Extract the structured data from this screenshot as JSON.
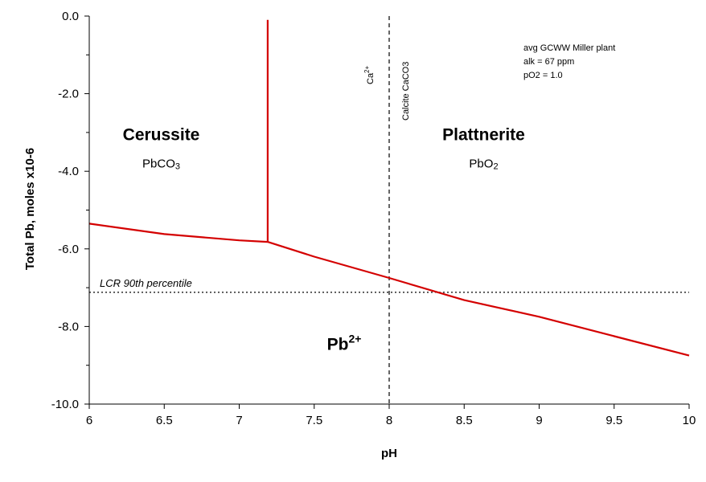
{
  "chart_data": {
    "type": "line",
    "xlabel": "pH",
    "ylabel": "Total Pb, moles x10-6",
    "xlim": [
      6,
      10
    ],
    "ylim": [
      -10.0,
      0.0
    ],
    "x_ticks": [
      "6",
      "6.5",
      "7",
      "7.5",
      "8",
      "8.5",
      "9",
      "9.5",
      "10"
    ],
    "y_ticks": [
      "0.0",
      "-2.0",
      "-4.0",
      "-6.0",
      "-8.0",
      "-10.0"
    ],
    "series": [
      {
        "points": [
          [
            6.0,
            -5.35
          ],
          [
            6.5,
            -5.62
          ],
          [
            7.0,
            -5.78
          ],
          [
            7.19,
            -5.82
          ],
          [
            7.5,
            -6.2
          ],
          [
            8.0,
            -6.75
          ],
          [
            8.5,
            -7.32
          ],
          [
            9.0,
            -7.75
          ],
          [
            9.5,
            -8.25
          ],
          [
            10.0,
            -8.75
          ]
        ]
      },
      {
        "points": [
          [
            7.19,
            -5.82
          ],
          [
            7.19,
            -0.1
          ]
        ]
      }
    ],
    "line_color": "#d40000",
    "reference_lines": [
      {
        "type": "horizontal",
        "y": -7.12,
        "style": "dotted",
        "label": "LCR 90th percentile"
      },
      {
        "type": "vertical",
        "x": 8.0,
        "style": "dashed",
        "labels": [
          "Ca2+",
          "Calcite CaCO3"
        ]
      }
    ],
    "regions": [
      {
        "name": "Cerussite",
        "formula_main": "PbCO",
        "formula_sub": "3",
        "x": 6.48,
        "y": -3.2
      },
      {
        "name": "Plattnerite",
        "formula_main": "PbO",
        "formula_sub": "2",
        "x": 8.63,
        "y": -3.2
      },
      {
        "name": "Pb",
        "name_sup": "2+",
        "x": 7.7,
        "y": -8.6
      }
    ],
    "notes": [
      "avg GCWW Miller plant",
      "alk = 67 ppm",
      "pO2 = 1.0"
    ]
  }
}
